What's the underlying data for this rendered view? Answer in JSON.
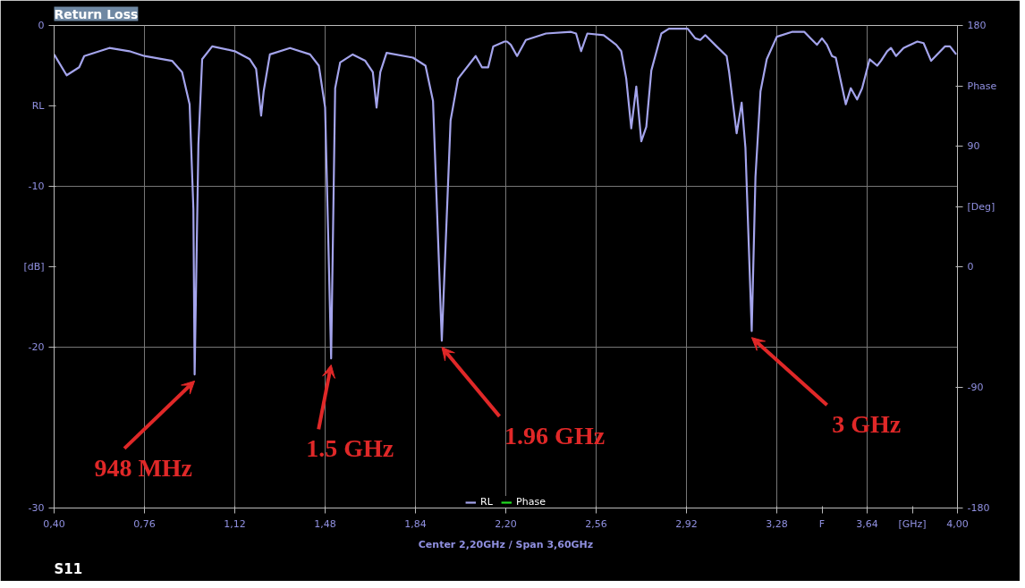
{
  "chart_data": {
    "type": "line",
    "title": "Return Loss",
    "x": [
      0.4,
      0.45,
      0.5,
      0.52,
      0.62,
      0.7,
      0.76,
      0.87,
      0.91,
      0.94,
      0.955,
      0.96,
      0.975,
      0.99,
      1.03,
      1.12,
      1.18,
      1.205,
      1.225,
      1.235,
      1.26,
      1.34,
      1.42,
      1.455,
      1.48,
      1.504,
      1.52,
      1.54,
      1.59,
      1.64,
      1.67,
      1.685,
      1.7,
      1.725,
      1.83,
      1.88,
      1.91,
      1.945,
      1.98,
      2.01,
      2.08,
      2.105,
      2.13,
      2.15,
      2.195,
      2.205,
      2.22,
      2.245,
      2.28,
      2.36,
      2.46,
      2.48,
      2.5,
      2.525,
      2.59,
      2.64,
      2.66,
      2.68,
      2.7,
      2.72,
      2.74,
      2.76,
      2.78,
      2.82,
      2.85,
      2.925,
      2.955,
      2.975,
      2.995,
      3.04,
      3.08,
      3.09,
      3.12,
      3.14,
      3.155,
      3.18,
      3.195,
      3.215,
      3.24,
      3.28,
      3.34,
      3.39,
      3.415,
      3.44,
      3.46,
      3.48,
      3.5,
      3.515,
      3.555,
      3.575,
      3.6,
      3.62,
      3.65,
      3.68,
      3.695,
      3.72,
      3.735,
      3.755,
      3.785,
      3.84,
      3.865,
      3.895,
      3.95,
      3.97,
      3.995
    ],
    "series": [
      {
        "name": "RL",
        "color": "#a4a4ec",
        "values": [
          -1.8,
          -3.1,
          -2.6,
          -1.9,
          -1.4,
          -1.6,
          -1.9,
          -2.2,
          -2.9,
          -4.9,
          -11.4,
          -21.7,
          -7.4,
          -2.1,
          -1.3,
          -1.6,
          -2.1,
          -2.7,
          -5.6,
          -4.1,
          -1.8,
          -1.4,
          -1.8,
          -2.5,
          -5.1,
          -20.7,
          -3.9,
          -2.3,
          -1.8,
          -2.2,
          -2.9,
          -5.1,
          -2.9,
          -1.7,
          -2.0,
          -2.5,
          -4.7,
          -19.6,
          -5.9,
          -3.3,
          -1.9,
          -2.6,
          -2.6,
          -1.3,
          -1.0,
          -1.0,
          -1.2,
          -1.9,
          -0.9,
          -0.5,
          -0.4,
          -0.5,
          -1.6,
          -0.5,
          -0.6,
          -1.2,
          -1.6,
          -3.3,
          -6.4,
          -3.8,
          -7.2,
          -6.3,
          -2.8,
          -0.5,
          -0.2,
          -0.2,
          -0.8,
          -0.9,
          -0.6,
          -1.3,
          -1.9,
          -2.9,
          -6.7,
          -4.8,
          -7.6,
          -19.0,
          -9.4,
          -4.1,
          -2.1,
          -0.7,
          -0.4,
          -0.4,
          -0.8,
          -1.2,
          -0.8,
          -1.2,
          -1.9,
          -2.0,
          -4.9,
          -3.9,
          -4.6,
          -3.9,
          -2.1,
          -2.5,
          -2.2,
          -1.6,
          -1.4,
          -1.9,
          -1.4,
          -1.0,
          -1.1,
          -2.2,
          -1.3,
          -1.3,
          -1.8
        ]
      },
      {
        "name": "Phase",
        "color": "#22dd22",
        "values": [
          null,
          null,
          null,
          null,
          null,
          null,
          null,
          null,
          null,
          null,
          null,
          null,
          null,
          null,
          null,
          null,
          null,
          null,
          null,
          null,
          null,
          null,
          null,
          null,
          null,
          null,
          null,
          null,
          null,
          null,
          null,
          null,
          null,
          null,
          null,
          null,
          null,
          null,
          null,
          null,
          null,
          null,
          null,
          null,
          null,
          null,
          null,
          null,
          null,
          null,
          null,
          null,
          null,
          null,
          null,
          null,
          null,
          null,
          null,
          null,
          null,
          null,
          null,
          null,
          null,
          null,
          null,
          null,
          null,
          null,
          null,
          null,
          null,
          null,
          null,
          null,
          null,
          null,
          null,
          null,
          null,
          null,
          null,
          null,
          null,
          null,
          null,
          null,
          null,
          null,
          null,
          null,
          null,
          null,
          null,
          null,
          null,
          null,
          null,
          null,
          null,
          null,
          null,
          null,
          null
        ]
      }
    ],
    "xlim": [
      0.4,
      4.0
    ],
    "ylim": [
      -30,
      0
    ],
    "y2lim": [
      -180,
      180
    ],
    "xticks": [
      {
        "value": 0.4,
        "label": "0,40"
      },
      {
        "value": 0.76,
        "label": "0,76"
      },
      {
        "value": 1.12,
        "label": "1,12"
      },
      {
        "value": 1.48,
        "label": "1,48"
      },
      {
        "value": 1.84,
        "label": "1,84"
      },
      {
        "value": 2.2,
        "label": "2,20"
      },
      {
        "value": 2.56,
        "label": "2,56"
      },
      {
        "value": 2.92,
        "label": "2,92"
      },
      {
        "value": 3.28,
        "label": "3,28"
      },
      {
        "value": 3.46,
        "label": "F"
      },
      {
        "value": 3.64,
        "label": "3,64"
      },
      {
        "value": 3.82,
        "label": "[GHz]"
      },
      {
        "value": 4.0,
        "label": "4,00"
      }
    ],
    "yticks": [
      0,
      {
        "value": -5,
        "label": "RL"
      },
      -10,
      {
        "value": -15,
        "label": "[dB]"
      },
      -20,
      -30
    ],
    "y2ticks": [
      180,
      {
        "value": 135,
        "label": "Phase"
      },
      90,
      {
        "value": 45,
        "label": "[Deg]"
      },
      0,
      -90,
      -180
    ],
    "grid": true,
    "legend": "bottom",
    "annotations": [
      {
        "text": "948 MHz",
        "x": 0.96,
        "y": -21.7
      },
      {
        "text": "1.5 GHz",
        "x": 1.504,
        "y": -20.7
      },
      {
        "text": "1.96 GHz",
        "x": 1.945,
        "y": -19.6
      },
      {
        "text": "3 GHz",
        "x": 3.18,
        "y": -19.0
      },
      "Center 2,20GHz / Span 3,60GHz",
      "S11"
    ]
  }
}
